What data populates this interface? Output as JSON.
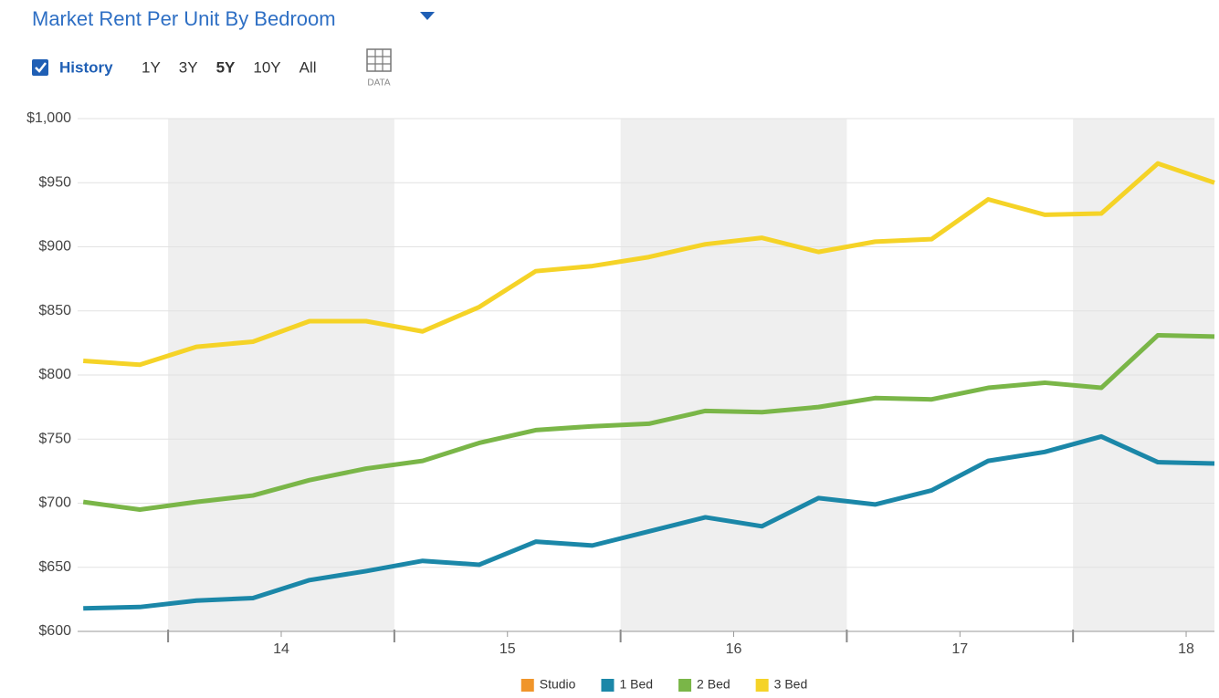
{
  "header": {
    "title": "Market Rent Per Unit By Bedroom",
    "history": "History",
    "ranges": [
      "1Y",
      "3Y",
      "5Y",
      "10Y",
      "All"
    ],
    "active_range": "5Y",
    "data_button": "DATA"
  },
  "chart_data": {
    "type": "line",
    "x": [
      13.625,
      13.875,
      14.125,
      14.375,
      14.625,
      14.875,
      15.125,
      15.375,
      15.625,
      15.875,
      16.125,
      16.375,
      16.625,
      16.875,
      17.125,
      17.375,
      17.625,
      17.875,
      18.125,
      18.375,
      18.625
    ],
    "xlim": [
      13.6,
      18.625
    ],
    "xticks": [
      {
        "value": 14.5,
        "label": "14"
      },
      {
        "value": 15.5,
        "label": "15"
      },
      {
        "value": 16.5,
        "label": "16"
      },
      {
        "value": 17.5,
        "label": "17"
      },
      {
        "value": 18.5,
        "label": "18"
      }
    ],
    "ylim": [
      600,
      1000
    ],
    "yticks": [
      {
        "value": 600,
        "label": "$600"
      },
      {
        "value": 650,
        "label": "$650"
      },
      {
        "value": 700,
        "label": "$700"
      },
      {
        "value": 750,
        "label": "$750"
      },
      {
        "value": 800,
        "label": "$800"
      },
      {
        "value": 850,
        "label": "$850"
      },
      {
        "value": 900,
        "label": "$900"
      },
      {
        "value": 950,
        "label": "$950"
      },
      {
        "value": 1000,
        "label": "$1,000"
      }
    ],
    "grid": true,
    "series": [
      {
        "name": "Studio",
        "color": "#f0952a",
        "values": [
          null,
          null,
          null,
          null,
          null,
          null,
          null,
          null,
          null,
          null,
          null,
          null,
          null,
          null,
          null,
          null,
          null,
          null,
          null,
          null,
          null
        ]
      },
      {
        "name": "1 Bed",
        "color": "#1b87a8",
        "values": [
          618,
          619,
          624,
          626,
          640,
          647,
          655,
          652,
          670,
          667,
          678,
          689,
          682,
          704,
          699,
          710,
          733,
          740,
          752,
          732,
          731
        ]
      },
      {
        "name": "2 Bed",
        "color": "#7ab648",
        "values": [
          701,
          695,
          701,
          706,
          718,
          727,
          733,
          747,
          757,
          760,
          762,
          772,
          771,
          775,
          782,
          781,
          790,
          794,
          790,
          831,
          830
        ]
      },
      {
        "name": "3 Bed",
        "color": "#f5d327",
        "values": [
          811,
          808,
          822,
          826,
          842,
          842,
          834,
          853,
          881,
          885,
          892,
          902,
          907,
          896,
          904,
          906,
          937,
          925,
          926,
          965,
          950
        ]
      }
    ]
  }
}
